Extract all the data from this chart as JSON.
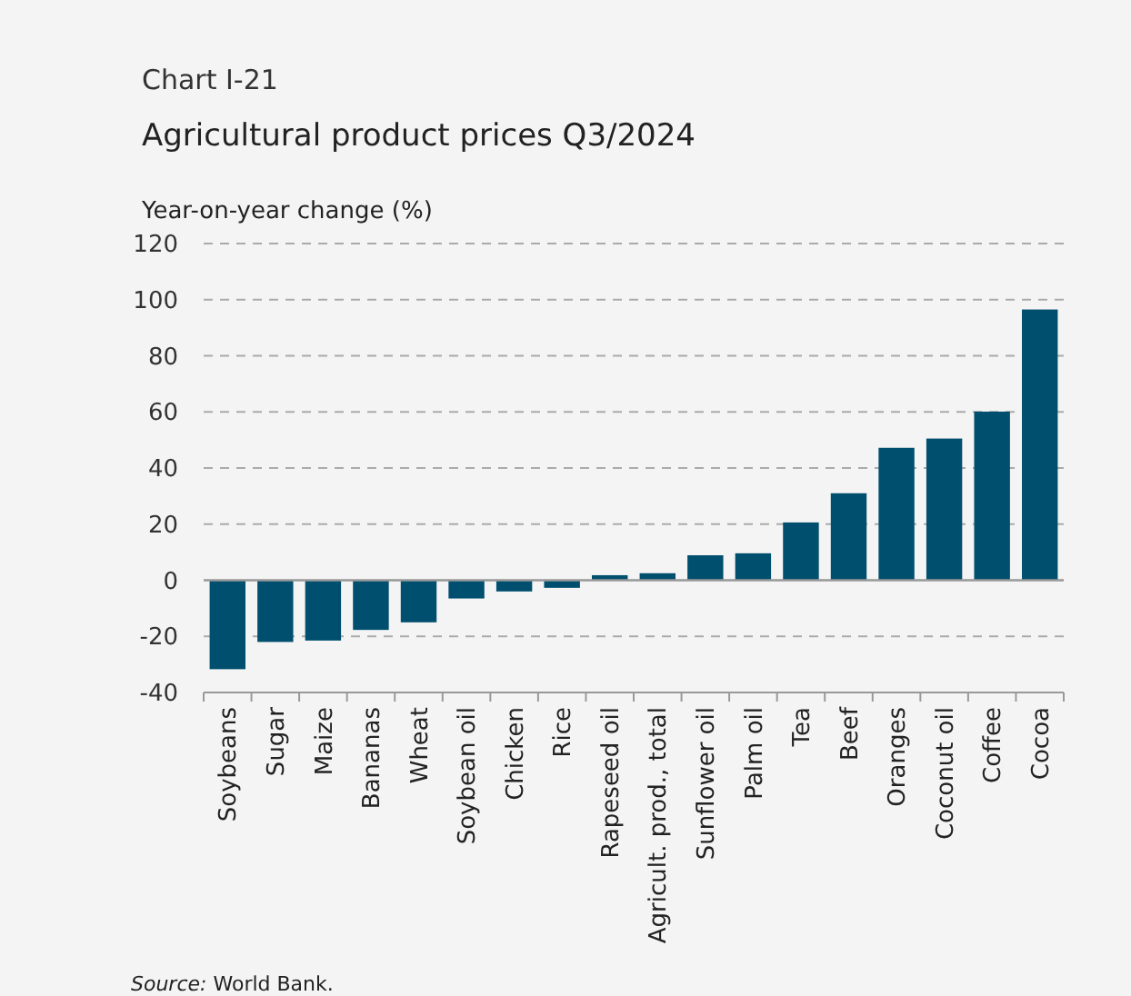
{
  "chart_data": {
    "type": "bar",
    "subtitle": "Chart I-21",
    "title": "Agricultural product prices Q3/2024",
    "ylabel": "Year-on-year change (%)",
    "categories": [
      "Soybeans",
      "Sugar",
      "Maize",
      "Bananas",
      "Wheat",
      "Soybean oil",
      "Chicken",
      "Rice",
      "Rapeseed oil",
      "Agricult. prod., total",
      "Sunflower oil",
      "Palm oil",
      "Tea",
      "Beef",
      "Oranges",
      "Coconut oil",
      "Coffee",
      "Cocoa"
    ],
    "values": [
      -31.7,
      -22,
      -21.5,
      -17.7,
      -15,
      -6.5,
      -4,
      -2.7,
      1.8,
      2.5,
      8.9,
      9.6,
      20.6,
      31,
      47.2,
      50.5,
      60.1,
      96.5
    ],
    "color": "#004f6e",
    "ylim": [
      -40,
      120
    ],
    "yticks": [
      -40,
      -20,
      0,
      20,
      40,
      60,
      80,
      100,
      120
    ],
    "grid": "y",
    "annotations": [
      "Source: World Bank."
    ]
  }
}
